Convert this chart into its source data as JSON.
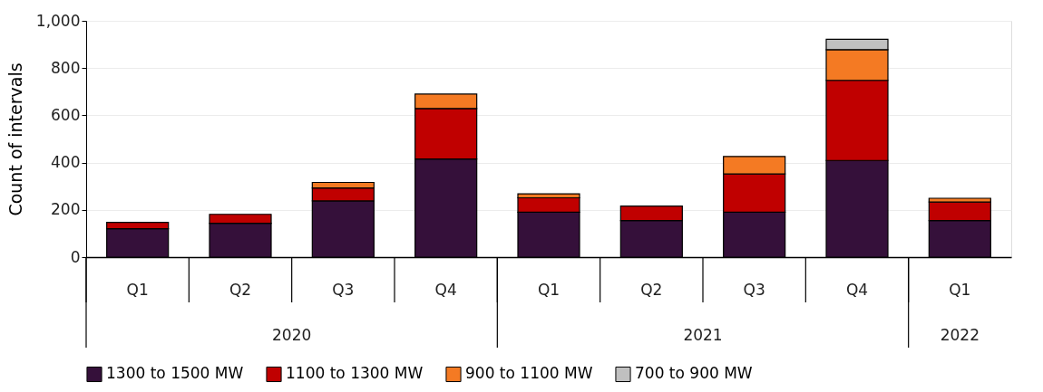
{
  "chart_data": {
    "type": "bar",
    "stacked": true,
    "ylabel": "Count of intervals",
    "categories": [
      "Q1",
      "Q2",
      "Q3",
      "Q4",
      "Q1",
      "Q2",
      "Q3",
      "Q4",
      "Q1"
    ],
    "series": [
      {
        "name": "1300 to 1500 MW",
        "color": "#35103a",
        "values": [
          120,
          143,
          238,
          415,
          190,
          155,
          190,
          409,
          155
        ]
      },
      {
        "name": "1100 to 1300 MW",
        "color": "#c00000",
        "values": [
          27,
          38,
          55,
          214,
          61,
          61,
          162,
          339,
          78
        ]
      },
      {
        "name": "900 to 1100 MW",
        "color": "#f47a23",
        "values": [
          null,
          null,
          23,
          61,
          17,
          null,
          74,
          130,
          16
        ]
      },
      {
        "name": "700 to 900 MW",
        "color": "#c0c0c0",
        "values": [
          null,
          null,
          null,
          null,
          null,
          null,
          null,
          44,
          null
        ]
      }
    ],
    "ylim": [
      0,
      1000
    ],
    "yticks": [
      0,
      200,
      400,
      600,
      800,
      {
        "value": 1000,
        "label": "1,000"
      }
    ],
    "grid": "y",
    "legend": "bottom",
    "annotations": [
      "2020",
      "2021",
      "2022"
    ]
  }
}
